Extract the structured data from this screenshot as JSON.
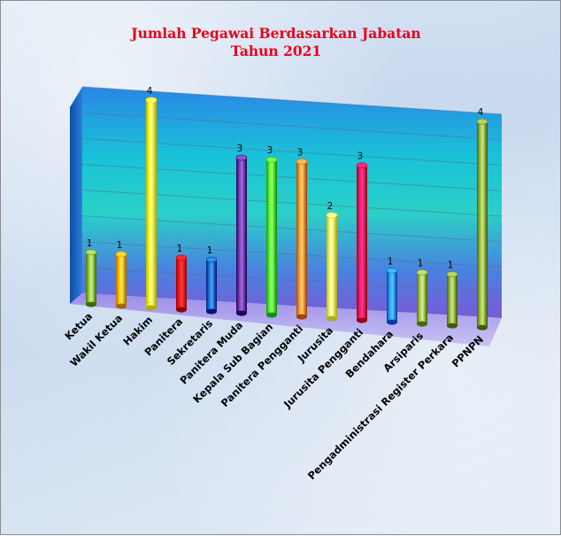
{
  "chart_data": {
    "type": "bar",
    "title": "Jumlah Pegawai Berdasarkan Jabatan",
    "subtitle": "Tahun 2021",
    "categories": [
      "Ketua",
      "Wakil Ketua",
      "Hakim",
      "Panitera",
      "Sekretaris",
      "Panitera Muda",
      "Kepala Sub Bagian",
      "Panitera Pengganti",
      "Jurusita",
      "Jurusita Pengganti",
      "Bendahara",
      "Arsiparis",
      "Pengadministrasi Register Perkara",
      "PPNPN"
    ],
    "values": [
      1,
      1,
      4,
      1,
      1,
      3,
      3,
      3,
      2,
      3,
      1,
      1,
      1,
      4
    ],
    "value_labels": [
      "1",
      "1",
      "4",
      "1",
      "1",
      "3",
      "3",
      "3",
      "2",
      "3",
      "1",
      "1",
      "1",
      "4"
    ],
    "ylim": [
      0,
      4
    ],
    "grid": true,
    "legend": "none",
    "colors": [
      "#8dbb3c",
      "#ffb300",
      "#ffff33",
      "#e60000",
      "#0a67c4",
      "#6a2ca5",
      "#54e62a",
      "#f79229",
      "#ffff66",
      "#e6005c",
      "#1a8ef0",
      "#9ab84a",
      "#8fad3a",
      "#8fad3a"
    ]
  }
}
